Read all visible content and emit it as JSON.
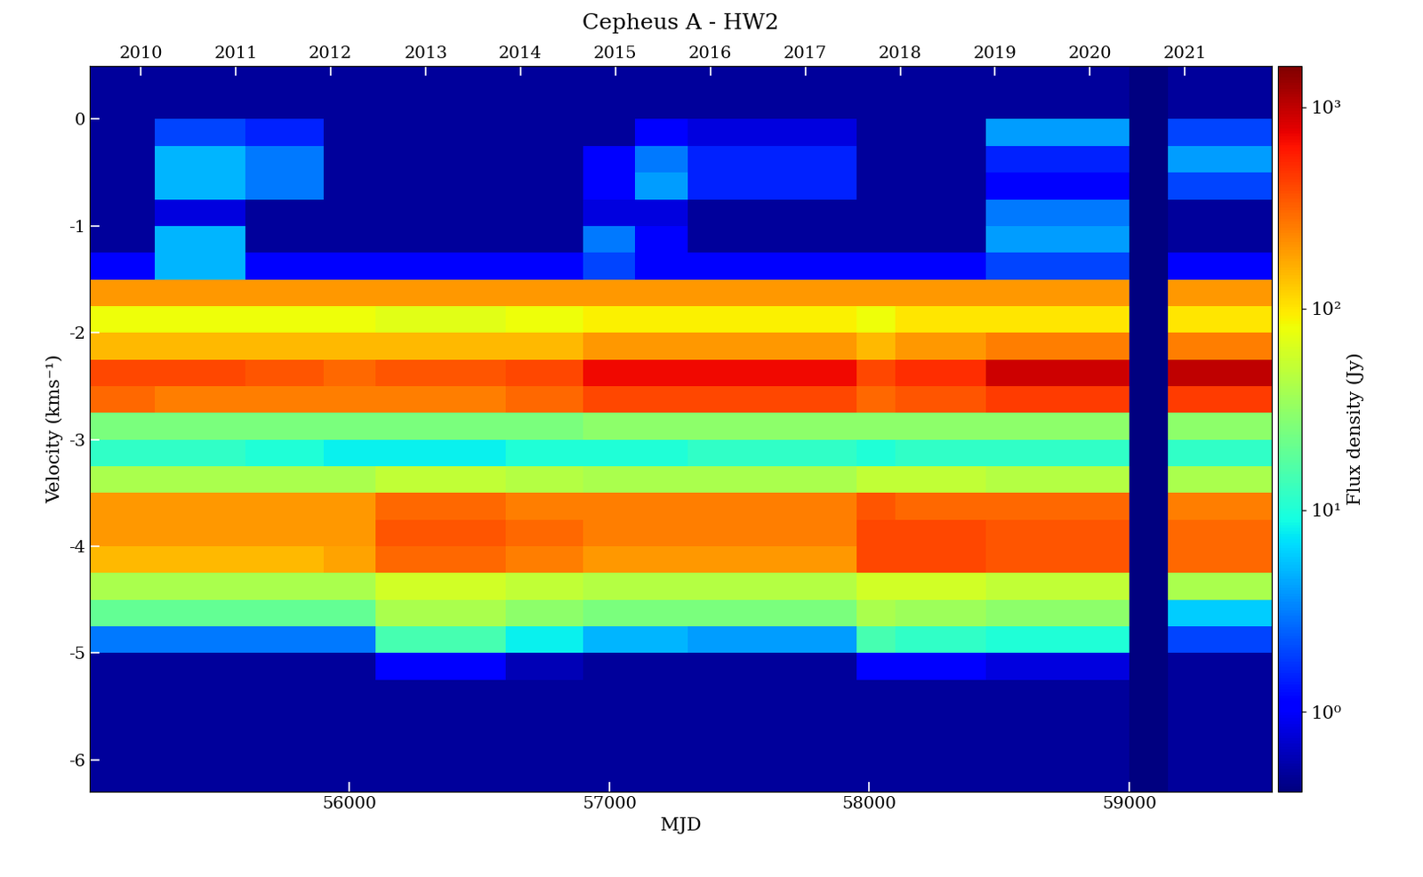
{
  "chart_data": {
    "type": "heatmap",
    "title": "Cepheus A - HW2",
    "x_label": "MJD",
    "y_label": "Velocity (kms⁻¹)",
    "xlim": [
      55000,
      59550
    ],
    "xticks": [
      56000,
      57000,
      58000,
      59000
    ],
    "x2ticks": [
      {
        "value": 55197,
        "label": "2010"
      },
      {
        "value": 55562,
        "label": "2011"
      },
      {
        "value": 55927,
        "label": "2012"
      },
      {
        "value": 56293,
        "label": "2013"
      },
      {
        "value": 56658,
        "label": "2014"
      },
      {
        "value": 57023,
        "label": "2015"
      },
      {
        "value": 57388,
        "label": "2016"
      },
      {
        "value": 57754,
        "label": "2017"
      },
      {
        "value": 58119,
        "label": "2018"
      },
      {
        "value": 58484,
        "label": "2019"
      },
      {
        "value": 58849,
        "label": "2020"
      },
      {
        "value": 59215,
        "label": "2021"
      }
    ],
    "ylim": [
      -6.3,
      0.5
    ],
    "yticks": [
      -6,
      -5,
      -4,
      -3,
      -2,
      -1,
      0
    ],
    "x_edges": [
      55000,
      55250,
      55600,
      55900,
      56100,
      56600,
      56900,
      57100,
      57300,
      57950,
      58100,
      58450,
      59000,
      59150,
      59550
    ],
    "y_edges": [
      -6.5,
      -6.25,
      -6.0,
      -5.75,
      -5.5,
      -5.25,
      -5.0,
      -4.75,
      -4.5,
      -4.25,
      -4.0,
      -3.75,
      -3.5,
      -3.25,
      -3.0,
      -2.75,
      -2.5,
      -2.25,
      -2.0,
      -1.75,
      -1.5,
      -1.25,
      -1.0,
      -0.75,
      -0.5,
      -0.25,
      0.0,
      0.25,
      0.5
    ],
    "cells": [
      [
        0.5,
        0.5,
        0.5,
        0.5,
        0.5,
        0.5,
        0.5,
        0.5,
        0.5,
        0.5,
        0.5,
        0.5,
        null,
        0.5
      ],
      [
        0.5,
        0.5,
        0.5,
        0.5,
        0.5,
        0.5,
        0.5,
        0.5,
        0.5,
        0.5,
        0.5,
        0.5,
        null,
        0.5
      ],
      [
        0.5,
        0.5,
        0.5,
        0.5,
        0.5,
        0.5,
        0.5,
        0.5,
        0.5,
        0.5,
        0.5,
        0.5,
        null,
        0.5
      ],
      [
        0.5,
        0.5,
        0.5,
        0.5,
        0.5,
        0.5,
        0.5,
        0.5,
        0.5,
        0.5,
        0.5,
        0.5,
        null,
        0.5
      ],
      [
        0.5,
        0.5,
        0.5,
        0.5,
        0.5,
        0.5,
        0.5,
        0.5,
        0.5,
        0.5,
        0.5,
        0.5,
        null,
        0.5
      ],
      [
        0.5,
        0.5,
        0.5,
        0.5,
        1,
        0.6,
        0.5,
        0.5,
        0.5,
        1,
        1,
        0.8,
        null,
        0.5
      ],
      [
        3,
        3,
        3,
        3,
        15,
        8,
        5,
        5,
        4,
        15,
        12,
        10,
        null,
        2
      ],
      [
        20,
        20,
        20,
        20,
        40,
        30,
        25,
        25,
        25,
        40,
        35,
        30,
        null,
        6
      ],
      [
        40,
        40,
        40,
        40,
        60,
        50,
        45,
        45,
        45,
        60,
        60,
        50,
        null,
        40
      ],
      [
        150,
        150,
        150,
        180,
        300,
        250,
        200,
        200,
        200,
        400,
        400,
        350,
        null,
        300
      ],
      [
        200,
        200,
        200,
        200,
        350,
        300,
        250,
        250,
        250,
        400,
        400,
        350,
        null,
        300
      ],
      [
        200,
        200,
        200,
        200,
        300,
        250,
        250,
        250,
        250,
        350,
        300,
        300,
        null,
        250
      ],
      [
        40,
        40,
        40,
        40,
        50,
        45,
        40,
        40,
        40,
        50,
        50,
        45,
        null,
        40
      ],
      [
        12,
        12,
        10,
        8,
        8,
        10,
        10,
        10,
        12,
        10,
        12,
        12,
        null,
        12
      ],
      [
        25,
        25,
        25,
        25,
        25,
        25,
        30,
        30,
        30,
        30,
        30,
        30,
        null,
        30
      ],
      [
        300,
        250,
        250,
        250,
        250,
        300,
        400,
        400,
        400,
        300,
        350,
        450,
        null,
        450
      ],
      [
        400,
        400,
        350,
        300,
        350,
        400,
        700,
        700,
        700,
        400,
        500,
        900,
        null,
        1000
      ],
      [
        150,
        150,
        150,
        150,
        150,
        150,
        200,
        200,
        200,
        150,
        200,
        250,
        null,
        250
      ],
      [
        80,
        80,
        80,
        80,
        70,
        80,
        90,
        90,
        90,
        80,
        100,
        100,
        null,
        100
      ],
      [
        200,
        200,
        200,
        200,
        200,
        200,
        200,
        200,
        200,
        200,
        200,
        200,
        null,
        200
      ],
      [
        1,
        5,
        1,
        1,
        1,
        1,
        2,
        1,
        1,
        1,
        1,
        2,
        null,
        1
      ],
      [
        0.5,
        5,
        0.5,
        0.5,
        0.5,
        0.5,
        3,
        1,
        0.5,
        0.5,
        0.5,
        4,
        null,
        0.5
      ],
      [
        0.5,
        0.8,
        0.5,
        0.5,
        0.5,
        0.5,
        0.8,
        0.8,
        0.5,
        0.5,
        0.5,
        3,
        null,
        0.5
      ],
      [
        0.5,
        5,
        3,
        0.5,
        0.5,
        0.5,
        1,
        4,
        1.5,
        0.5,
        0.5,
        1,
        null,
        2
      ],
      [
        0.5,
        5,
        3,
        0.5,
        0.5,
        0.5,
        1,
        3,
        1.5,
        0.5,
        0.5,
        1.5,
        null,
        4
      ],
      [
        0.5,
        2,
        1.5,
        0.5,
        0.5,
        0.5,
        0.5,
        1,
        0.8,
        0.5,
        0.5,
        4,
        null,
        2
      ],
      [
        0.5,
        0.5,
        0.5,
        0.5,
        0.5,
        0.5,
        0.5,
        0.5,
        0.5,
        0.5,
        0.5,
        0.5,
        null,
        0.5
      ],
      [
        0.5,
        0.5,
        0.5,
        0.5,
        0.5,
        0.5,
        0.5,
        0.5,
        0.5,
        0.5,
        0.5,
        0.5,
        null,
        0.5
      ]
    ],
    "colorbar": {
      "label": "Flux density (Jy)",
      "lim": [
        0.4,
        1600
      ],
      "log": true,
      "ticks": [
        {
          "value": 1,
          "label": "10⁰"
        },
        {
          "value": 10,
          "label": "10¹"
        },
        {
          "value": 100,
          "label": "10²"
        },
        {
          "value": 1000,
          "label": "10³"
        }
      ]
    }
  }
}
